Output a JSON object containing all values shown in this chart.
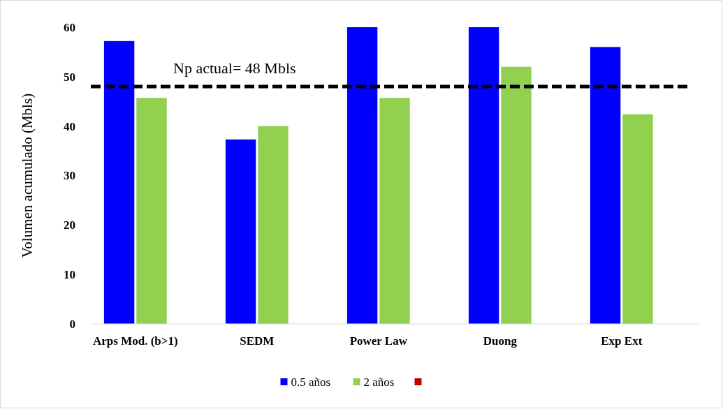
{
  "chart_data": {
    "type": "bar",
    "ylabel": "Volumen acumulado (Mbls)",
    "categories": [
      "Arps Mod. (b>1)",
      "SEDM",
      "Power Law",
      "Duong",
      "Exp Ext"
    ],
    "series": [
      {
        "name": "0.5 años",
        "color": "#0000ff",
        "values": [
          57.2,
          37.3,
          60,
          60,
          56.0
        ]
      },
      {
        "name": "2 años",
        "color": "#92d050",
        "values": [
          45.7,
          40.0,
          45.7,
          52.0,
          42.4
        ]
      },
      {
        "color": "#c00000",
        "values": [
          null,
          null,
          null,
          null,
          null
        ]
      }
    ],
    "ylim": [
      0,
      60
    ],
    "yticks": [
      0,
      10,
      20,
      30,
      40,
      50,
      60
    ],
    "grid": false,
    "legend": "bottom",
    "ref_lines": [
      {
        "axis": "y",
        "value": 48,
        "label": "Np actual= 48 Mbls",
        "color": "#000000",
        "line_style": "dashed"
      }
    ]
  }
}
